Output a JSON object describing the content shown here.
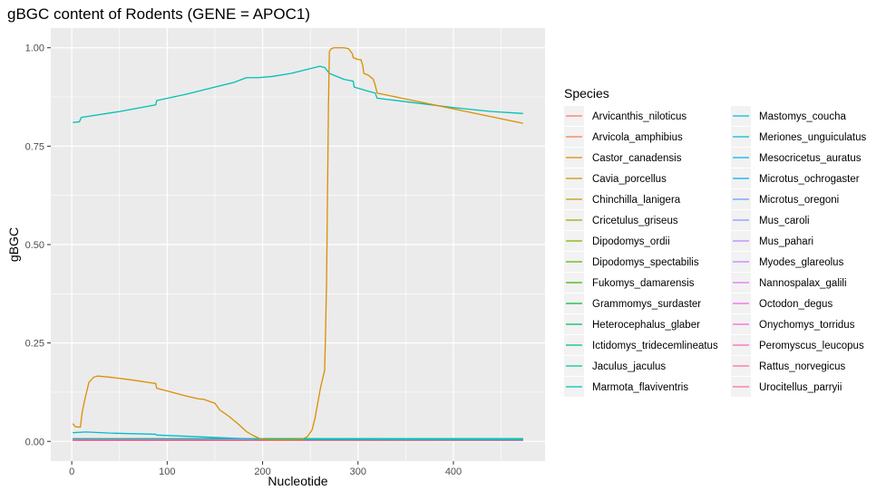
{
  "chart_data": {
    "type": "line",
    "title": "gBGC content of Rodents (GENE = APOC1)",
    "xlabel": "Nucleotide",
    "ylabel": "gBGC",
    "xlim": [
      -22,
      496
    ],
    "ylim": [
      -0.05,
      1.05
    ],
    "x_ticks": [
      0,
      100,
      200,
      300,
      400
    ],
    "x_tick_labels": [
      "0",
      "100",
      "200",
      "300",
      "400"
    ],
    "y_ticks": [
      0,
      0.25,
      0.5,
      0.75,
      1.0
    ],
    "y_tick_labels": [
      "0.00",
      "0.25",
      "0.50",
      "0.75",
      "1.00"
    ],
    "grid": true,
    "legend": {
      "title": "Species",
      "placement": "right",
      "columns": 2
    },
    "series": [
      {
        "name": "Arvicanthis_niloticus",
        "color": "#F8766D",
        "points": [
          [
            1,
            0.004
          ],
          [
            473,
            0.004
          ]
        ]
      },
      {
        "name": "Arvicola_amphibius",
        "color": "#EE8043",
        "points": [
          [
            1,
            0.003
          ],
          [
            473,
            0.003
          ]
        ]
      },
      {
        "name": "Castor_canadensis",
        "color": "#E08B00",
        "points": [
          [
            1,
            0.002
          ],
          [
            473,
            0.002
          ]
        ]
      },
      {
        "name": "Cavia_porcellus",
        "color": "#D89000",
        "points": [
          [
            1,
            0.045
          ],
          [
            4,
            0.037
          ],
          [
            9,
            0.036
          ],
          [
            11,
            0.075
          ],
          [
            14,
            0.11
          ],
          [
            18,
            0.15
          ],
          [
            23,
            0.163
          ],
          [
            27,
            0.166
          ],
          [
            40,
            0.163
          ],
          [
            60,
            0.157
          ],
          [
            88,
            0.147
          ],
          [
            89,
            0.135
          ],
          [
            100,
            0.128
          ],
          [
            120,
            0.115
          ],
          [
            133,
            0.108
          ],
          [
            138,
            0.107
          ],
          [
            145,
            0.101
          ],
          [
            150,
            0.097
          ],
          [
            155,
            0.08
          ],
          [
            165,
            0.063
          ],
          [
            175,
            0.043
          ],
          [
            183,
            0.025
          ],
          [
            190,
            0.015
          ],
          [
            197,
            0.007
          ],
          [
            205,
            0.004
          ],
          [
            240,
            0.004
          ],
          [
            247,
            0.012
          ],
          [
            252,
            0.03
          ],
          [
            255,
            0.06
          ],
          [
            258,
            0.1
          ],
          [
            261,
            0.14
          ],
          [
            264,
            0.17
          ],
          [
            265,
            0.18
          ],
          [
            266,
            0.28
          ],
          [
            267,
            0.4
          ],
          [
            268,
            0.62
          ],
          [
            269,
            0.85
          ],
          [
            270,
            0.99
          ],
          [
            272,
            0.998
          ],
          [
            275,
            1.0
          ],
          [
            285,
            1.0
          ],
          [
            290,
            0.998
          ],
          [
            294,
            0.985
          ],
          [
            295,
            0.975
          ],
          [
            300,
            0.97
          ],
          [
            303,
            0.97
          ],
          [
            305,
            0.955
          ],
          [
            306,
            0.935
          ],
          [
            311,
            0.93
          ],
          [
            316,
            0.92
          ],
          [
            318,
            0.905
          ],
          [
            320,
            0.885
          ],
          [
            473,
            0.808
          ]
        ]
      },
      {
        "name": "Chinchilla_lanigera",
        "color": "#C09B00",
        "points": [
          [
            1,
            0.003
          ],
          [
            473,
            0.003
          ]
        ]
      },
      {
        "name": "Cricetulus_griseus",
        "color": "#A3A500",
        "points": [
          [
            1,
            0.003
          ],
          [
            473,
            0.003
          ]
        ]
      },
      {
        "name": "Dipodomys_ordii",
        "color": "#7CAE00",
        "points": [
          [
            1,
            0.004
          ],
          [
            473,
            0.004
          ]
        ]
      },
      {
        "name": "Dipodomys_spectabilis",
        "color": "#5EB300",
        "points": [
          [
            1,
            0.004
          ],
          [
            473,
            0.004
          ]
        ]
      },
      {
        "name": "Fukomys_damarensis",
        "color": "#39B600",
        "points": [
          [
            1,
            0.004
          ],
          [
            473,
            0.004
          ]
        ]
      },
      {
        "name": "Grammomys_surdaster",
        "color": "#00BA38",
        "points": [
          [
            1,
            0.005
          ],
          [
            473,
            0.005
          ]
        ]
      },
      {
        "name": "Heterocephalus_glaber",
        "color": "#00BD5F",
        "points": [
          [
            1,
            0.006
          ],
          [
            473,
            0.006
          ]
        ]
      },
      {
        "name": "Ictidomys_tridecemlineatus",
        "color": "#00BF7D",
        "points": [
          [
            1,
            0.007
          ],
          [
            473,
            0.007
          ]
        ]
      },
      {
        "name": "Jaculus_jaculus",
        "color": "#00C19A",
        "points": [
          [
            1,
            0.005
          ],
          [
            473,
            0.005
          ]
        ]
      },
      {
        "name": "Marmota_flaviventris",
        "color": "#00C0B5",
        "points": [
          [
            1,
            0.81
          ],
          [
            8,
            0.812
          ],
          [
            10,
            0.823
          ],
          [
            50,
            0.838
          ],
          [
            88,
            0.855
          ],
          [
            89,
            0.866
          ],
          [
            120,
            0.882
          ],
          [
            150,
            0.9
          ],
          [
            170,
            0.912
          ],
          [
            183,
            0.924
          ],
          [
            195,
            0.924
          ],
          [
            210,
            0.927
          ],
          [
            230,
            0.935
          ],
          [
            250,
            0.947
          ],
          [
            260,
            0.953
          ],
          [
            265,
            0.95
          ],
          [
            270,
            0.935
          ],
          [
            285,
            0.92
          ],
          [
            295,
            0.915
          ],
          [
            296,
            0.9
          ],
          [
            310,
            0.89
          ],
          [
            318,
            0.885
          ],
          [
            320,
            0.872
          ],
          [
            360,
            0.86
          ],
          [
            400,
            0.848
          ],
          [
            440,
            0.838
          ],
          [
            473,
            0.833
          ]
        ]
      },
      {
        "name": "Mastomys_coucha",
        "color": "#00BCD8",
        "points": [
          [
            1,
            0.005
          ],
          [
            473,
            0.005
          ]
        ]
      },
      {
        "name": "Meriones_unguiculatus",
        "color": "#00BDD0",
        "points": [
          [
            1,
            0.022
          ],
          [
            15,
            0.024
          ],
          [
            40,
            0.021
          ],
          [
            88,
            0.018
          ],
          [
            89,
            0.016
          ],
          [
            150,
            0.01
          ],
          [
            200,
            0.005
          ],
          [
            473,
            0.004
          ]
        ]
      },
      {
        "name": "Mesocricetus_auratus",
        "color": "#00B4EF",
        "points": [
          [
            1,
            0.004
          ],
          [
            473,
            0.004
          ]
        ]
      },
      {
        "name": "Microtus_ochrogaster",
        "color": "#00A9FF",
        "points": [
          [
            1,
            0.003
          ],
          [
            473,
            0.003
          ]
        ]
      },
      {
        "name": "Microtus_oregoni",
        "color": "#619CFF",
        "points": [
          [
            1,
            0.002
          ],
          [
            473,
            0.002
          ]
        ]
      },
      {
        "name": "Mus_caroli",
        "color": "#8A94FF",
        "points": [
          [
            1,
            0.003
          ],
          [
            473,
            0.003
          ]
        ]
      },
      {
        "name": "Mus_pahari",
        "color": "#AE87FF",
        "points": [
          [
            1,
            0.003
          ],
          [
            473,
            0.003
          ]
        ]
      },
      {
        "name": "Myodes_glareolus",
        "color": "#C77CFF",
        "points": [
          [
            1,
            0.003
          ],
          [
            473,
            0.003
          ]
        ]
      },
      {
        "name": "Nannospalax_galili",
        "color": "#DF70F8",
        "points": [
          [
            1,
            0.003
          ],
          [
            473,
            0.003
          ]
        ]
      },
      {
        "name": "Octodon_degus",
        "color": "#F066EA",
        "points": [
          [
            1,
            0.004
          ],
          [
            473,
            0.004
          ]
        ]
      },
      {
        "name": "Onychomys_torridus",
        "color": "#FB61D7",
        "points": [
          [
            1,
            0.002
          ],
          [
            473,
            0.002
          ]
        ]
      },
      {
        "name": "Peromyscus_leucopus",
        "color": "#FF62BC",
        "points": [
          [
            1,
            0.003
          ],
          [
            473,
            0.003
          ]
        ]
      },
      {
        "name": "Rattus_norvegicus",
        "color": "#FF6A98",
        "points": [
          [
            1,
            0.002
          ],
          [
            473,
            0.002
          ]
        ]
      },
      {
        "name": "Urocitellus_parryii",
        "color": "#FF6C91",
        "points": [
          [
            1,
            0.003
          ],
          [
            473,
            0.003
          ]
        ]
      }
    ]
  }
}
